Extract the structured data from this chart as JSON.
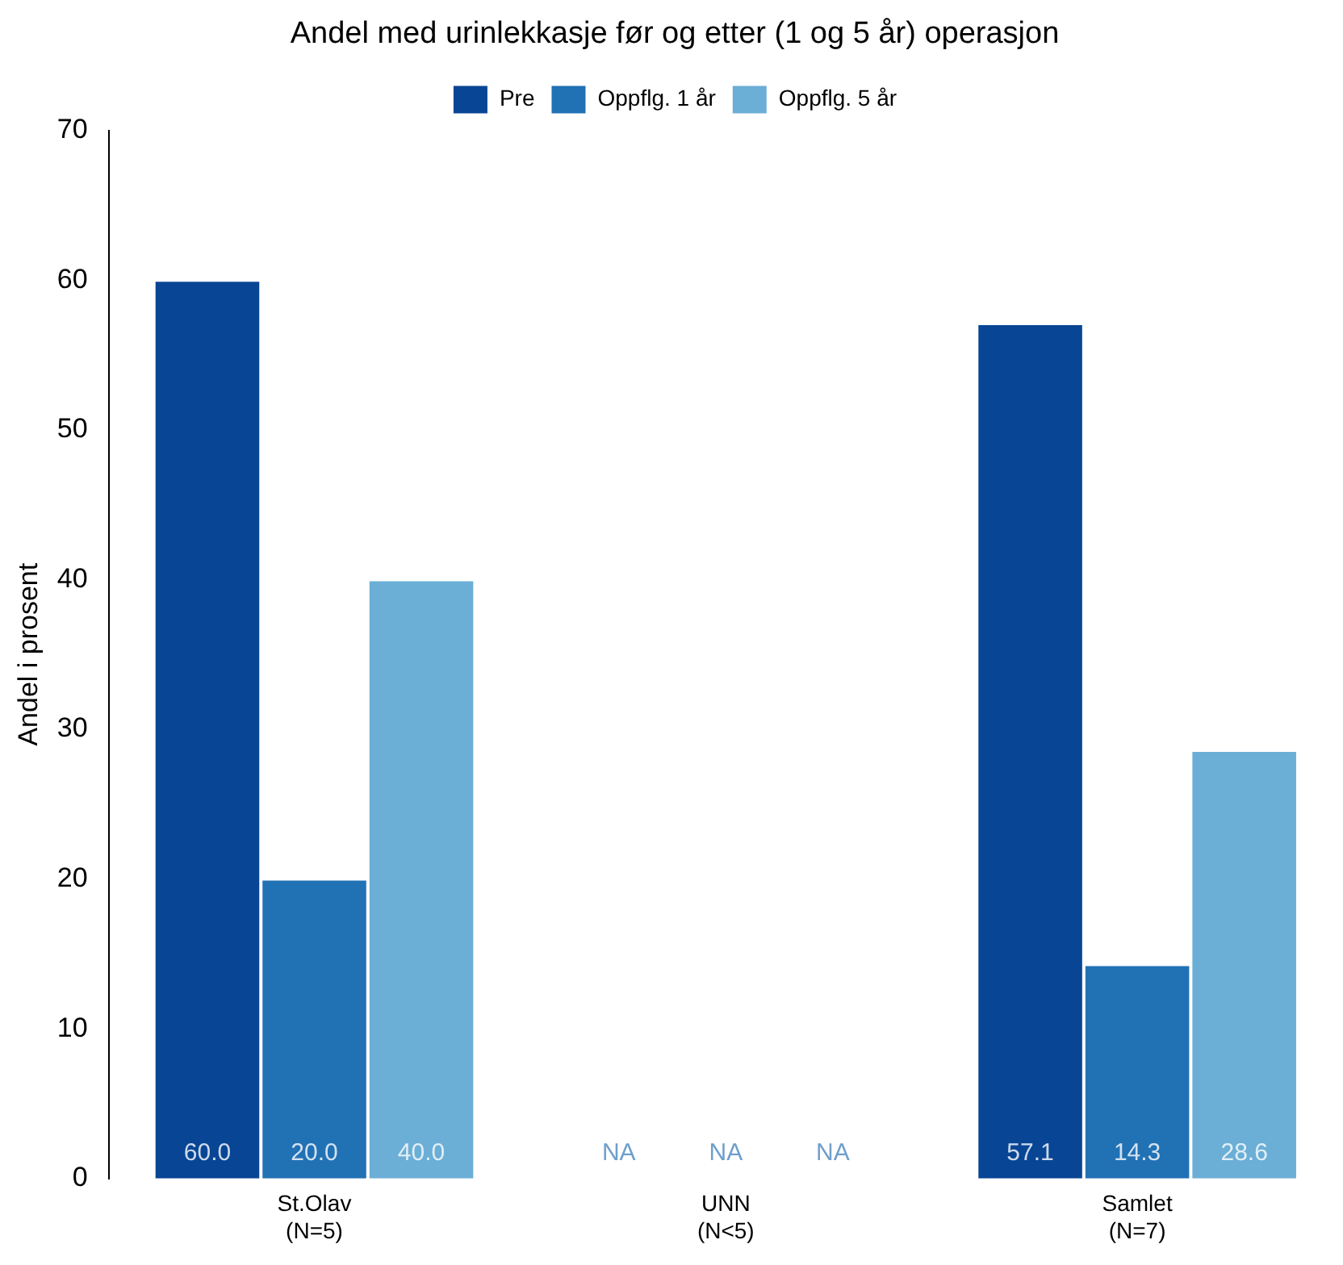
{
  "chart_data": {
    "type": "bar",
    "title": "Andel med urinlekkasje før og etter (1 og 5 år) operasjon",
    "ylabel": "Andel i prosent",
    "categories": [
      "St.Olav\n(N=5)",
      "UNN\n(N<5)",
      "Samlet\n(N=7)"
    ],
    "series": [
      {
        "name": "Pre",
        "color": "#084594",
        "values": [
          60.0,
          null,
          57.1
        ],
        "value_labels": [
          "60.0",
          "NA",
          "57.1"
        ]
      },
      {
        "name": "Oppflg. 1 år",
        "color": "#2171b5",
        "values": [
          20.0,
          null,
          14.3
        ],
        "value_labels": [
          "20.0",
          "NA",
          "14.3"
        ]
      },
      {
        "name": "Oppflg. 5 år",
        "color": "#6baed6",
        "values": [
          40.0,
          null,
          28.6
        ],
        "value_labels": [
          "40.0",
          "NA",
          "28.6"
        ]
      }
    ],
    "ylim": [
      0,
      70
    ],
    "yticks": [
      0,
      10,
      20,
      30,
      40,
      50,
      60,
      70
    ],
    "grid": false,
    "legend": "top"
  }
}
